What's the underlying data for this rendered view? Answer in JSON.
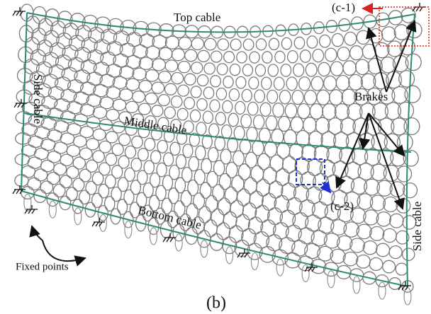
{
  "labels": {
    "top_cable": "Top cable",
    "c1": "(c-1)",
    "side_cable_left": "Side cable",
    "brakes": "Brakes",
    "middle_cable": "Middle cable",
    "c2": "(c-2)",
    "bottom_cable": "Bottom cable",
    "side_cable_right": "Side cable",
    "fixed_points": "Fixed points",
    "panel": "(b)"
  }
}
